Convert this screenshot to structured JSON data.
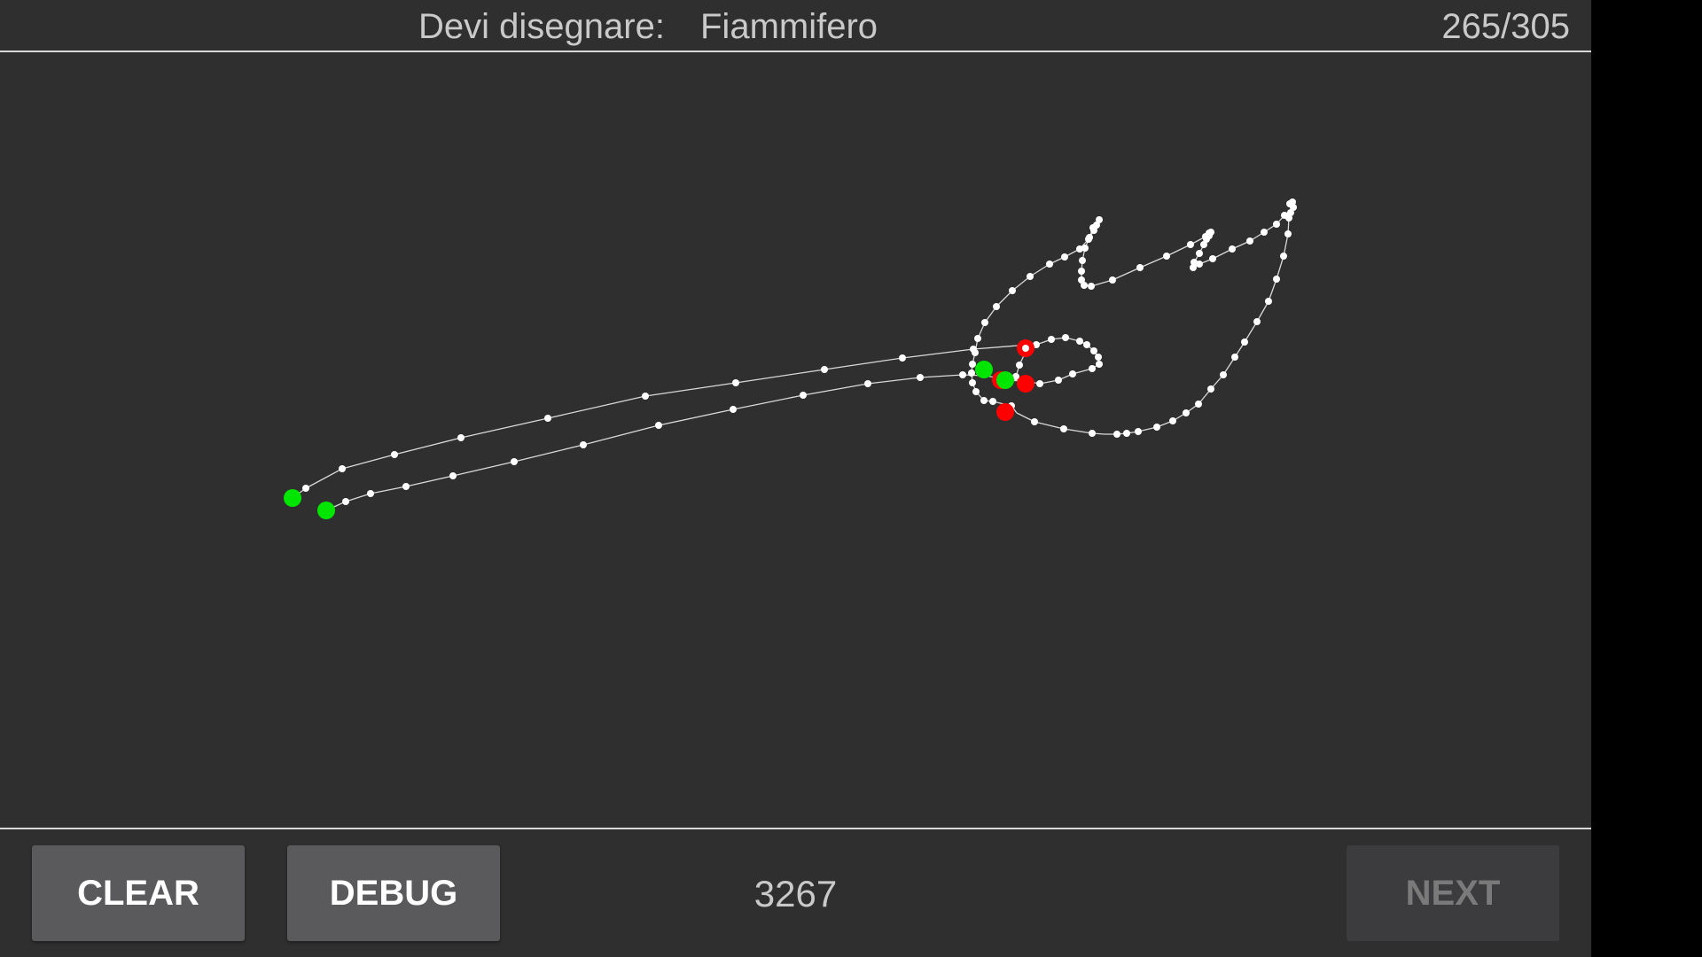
{
  "header": {
    "prompt_label": "Devi disegnare:",
    "prompt_word": "Fiammifero",
    "progress": "265/305"
  },
  "footer": {
    "clear_label": "CLEAR",
    "debug_label": "DEBUG",
    "score": "3267",
    "next_label": "NEXT"
  },
  "colors": {
    "background": "#2f2f2f",
    "stroke": "#d9d9d9",
    "point": "#ffffff",
    "stroke_start": "#00e600",
    "stroke_end": "#ff0000"
  }
}
